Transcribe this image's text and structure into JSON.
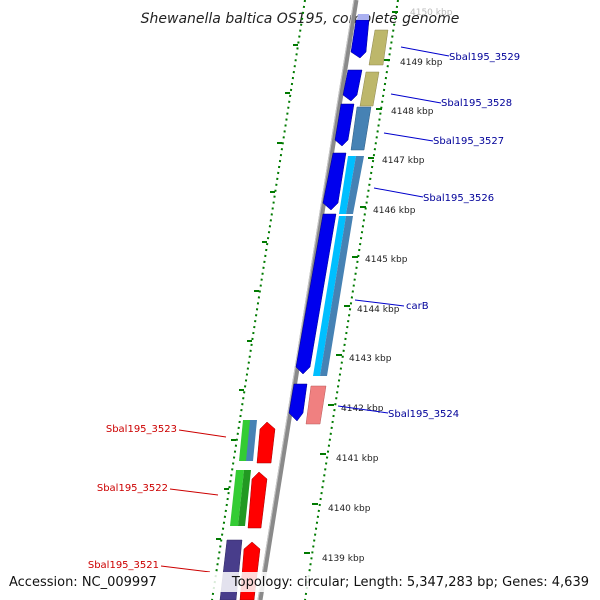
{
  "title": "Shewanella baltica OS195, complete genome",
  "accession": "Accession: NC_009997",
  "topology": "Topology: circular; Length: 5,347,283 bp; Genes: 4,639",
  "colors": {
    "backbone": "#888888",
    "ruler": "#007a00",
    "label_forward": "#000099",
    "label_reverse": "#cc0000"
  },
  "ruler_labels": [
    "4150 kbp",
    "4149 kbp",
    "4148 kbp",
    "4147 kbp",
    "4146 kbp",
    "4145 kbp",
    "4144 kbp",
    "4143 kbp",
    "4142 kbp",
    "4141 kbp",
    "4140 kbp",
    "4139 kbp"
  ],
  "gene_labels": {
    "sbal3529": "Sbal195_3529",
    "sbal3528": "Sbal195_3528",
    "sbal3527": "Sbal195_3527",
    "sbal3526": "Sbal195_3526",
    "carB": "carB",
    "sbal3524": "Sbal195_3524",
    "sbal3523": "Sbal195_3523",
    "sbal3522": "Sbal195_3522",
    "sbal3521": "Sbal195_3521"
  }
}
